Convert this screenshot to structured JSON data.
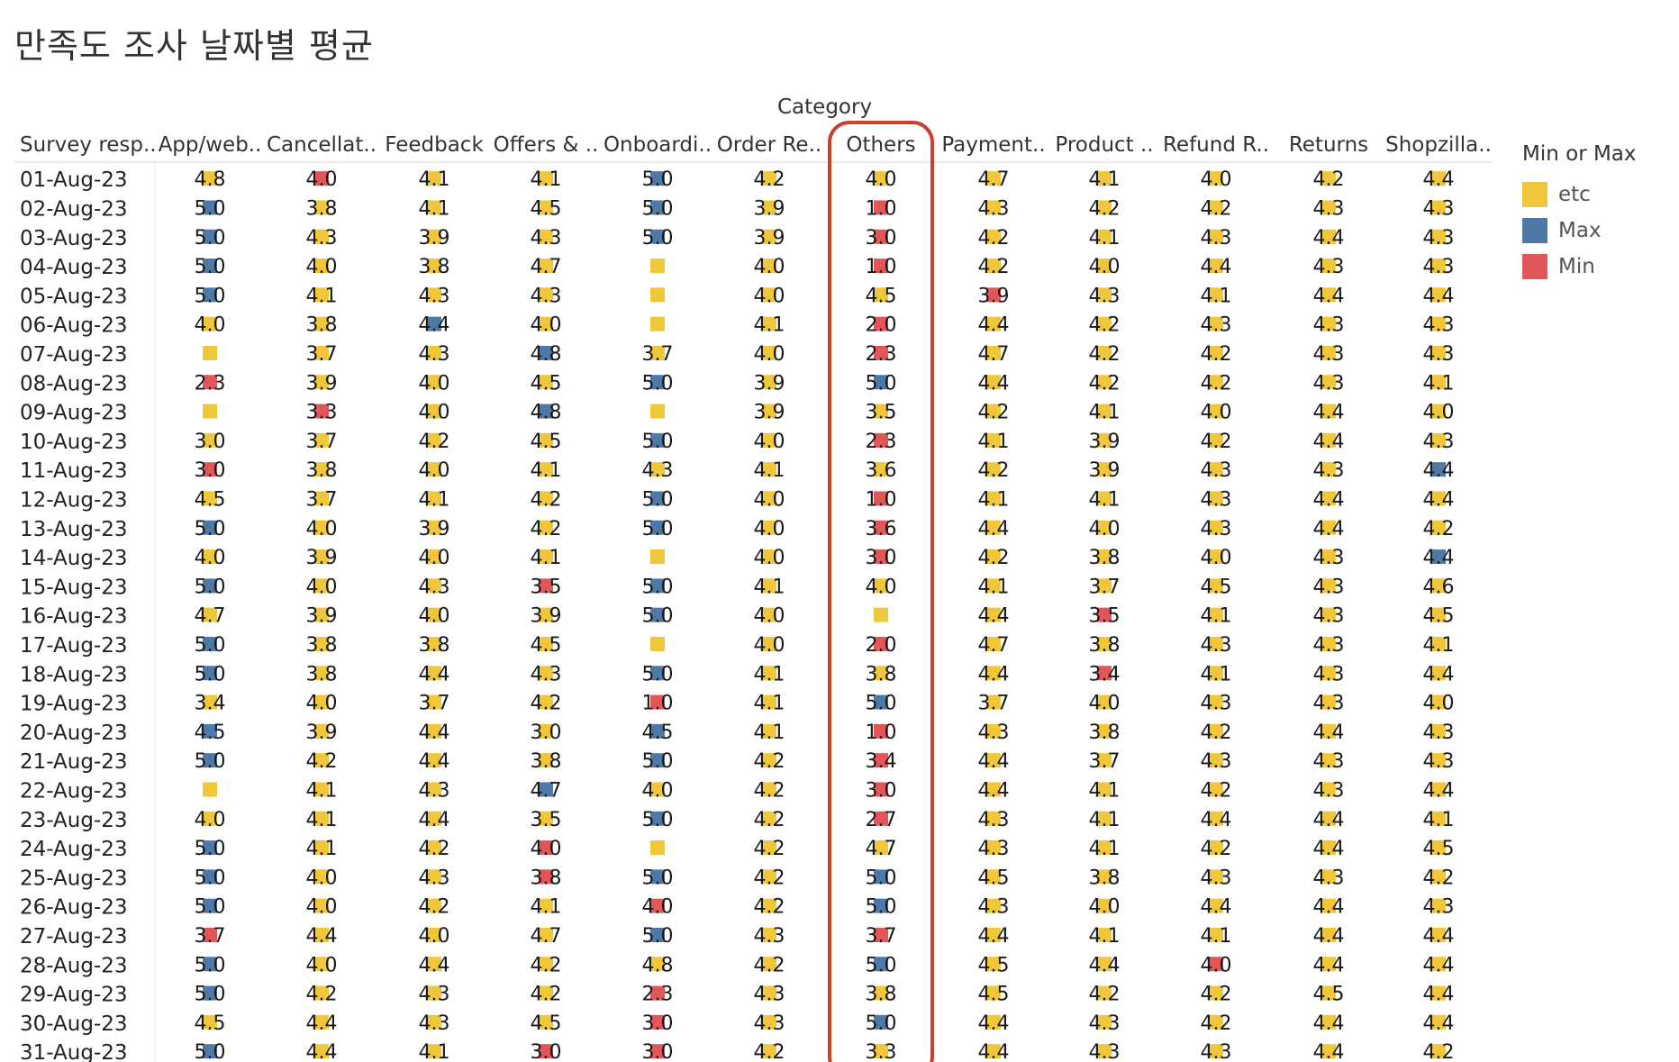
{
  "title": "만족도 조사 날짜별 평균",
  "category_label": "Category",
  "legend": {
    "title": "Min or Max",
    "items": [
      {
        "label": "etc",
        "color": "#f0c63a"
      },
      {
        "label": "Max",
        "color": "#4e79a7"
      },
      {
        "label": "Min",
        "color": "#e15759"
      }
    ]
  },
  "highlight_color": "#c8412b",
  "chart_data": {
    "type": "table",
    "row_header": "Survey resp..",
    "highlighted_column": "Others",
    "columns": [
      "App/web..",
      "Cancellat..",
      "Feedback",
      "Offers & ..",
      "Onboardi..",
      "Order Re..",
      "Others",
      "Payment..",
      "Product ..",
      "Refund R..",
      "Returns",
      "Shopzilla.."
    ],
    "rows": [
      {
        "date": "01-Aug-23",
        "values": [
          "4.8",
          "4.0",
          "4.1",
          "4.1",
          "5.0",
          "4.2",
          "4.0",
          "4.7",
          "4.1",
          "4.0",
          "4.2",
          "4.4"
        ],
        "marks": [
          "etc",
          "min",
          "etc",
          "etc",
          "max",
          "etc",
          "etc",
          "etc",
          "etc",
          "etc",
          "etc",
          "etc"
        ]
      },
      {
        "date": "02-Aug-23",
        "values": [
          "5.0",
          "3.8",
          "4.1",
          "4.5",
          "5.0",
          "3.9",
          "1.0",
          "4.3",
          "4.2",
          "4.2",
          "4.3",
          "4.3"
        ],
        "marks": [
          "max",
          "etc",
          "etc",
          "etc",
          "max",
          "etc",
          "min",
          "etc",
          "etc",
          "etc",
          "etc",
          "etc"
        ]
      },
      {
        "date": "03-Aug-23",
        "values": [
          "5.0",
          "4.3",
          "3.9",
          "4.3",
          "5.0",
          "3.9",
          "3.0",
          "4.2",
          "4.1",
          "4.3",
          "4.4",
          "4.3"
        ],
        "marks": [
          "max",
          "etc",
          "etc",
          "etc",
          "max",
          "etc",
          "min",
          "etc",
          "etc",
          "etc",
          "etc",
          "etc"
        ]
      },
      {
        "date": "04-Aug-23",
        "values": [
          "5.0",
          "4.0",
          "3.8",
          "4.7",
          "",
          "4.0",
          "1.0",
          "4.2",
          "4.0",
          "4.4",
          "4.3",
          "4.3"
        ],
        "marks": [
          "max",
          "etc",
          "etc",
          "etc",
          "etc",
          "etc",
          "min",
          "etc",
          "etc",
          "etc",
          "etc",
          "etc"
        ]
      },
      {
        "date": "05-Aug-23",
        "values": [
          "5.0",
          "4.1",
          "4.3",
          "4.3",
          "",
          "4.0",
          "4.5",
          "3.9",
          "4.3",
          "4.1",
          "4.4",
          "4.4"
        ],
        "marks": [
          "max",
          "etc",
          "etc",
          "etc",
          "etc",
          "etc",
          "etc",
          "min",
          "etc",
          "etc",
          "etc",
          "etc"
        ]
      },
      {
        "date": "06-Aug-23",
        "values": [
          "4.0",
          "3.8",
          "4.4",
          "4.0",
          "",
          "4.1",
          "2.0",
          "4.4",
          "4.2",
          "4.3",
          "4.3",
          "4.3"
        ],
        "marks": [
          "etc",
          "etc",
          "max",
          "etc",
          "etc",
          "etc",
          "min",
          "etc",
          "etc",
          "etc",
          "etc",
          "etc"
        ]
      },
      {
        "date": "07-Aug-23",
        "values": [
          "",
          "3.7",
          "4.3",
          "4.8",
          "3.7",
          "4.0",
          "2.3",
          "4.7",
          "4.2",
          "4.2",
          "4.3",
          "4.3"
        ],
        "marks": [
          "etc",
          "etc",
          "etc",
          "max",
          "etc",
          "etc",
          "min",
          "etc",
          "etc",
          "etc",
          "etc",
          "etc"
        ]
      },
      {
        "date": "08-Aug-23",
        "values": [
          "2.3",
          "3.9",
          "4.0",
          "4.5",
          "5.0",
          "3.9",
          "5.0",
          "4.4",
          "4.2",
          "4.2",
          "4.3",
          "4.1"
        ],
        "marks": [
          "min",
          "etc",
          "etc",
          "etc",
          "max",
          "etc",
          "max",
          "etc",
          "etc",
          "etc",
          "etc",
          "etc"
        ]
      },
      {
        "date": "09-Aug-23",
        "values": [
          "",
          "3.3",
          "4.0",
          "4.8",
          "",
          "3.9",
          "3.5",
          "4.2",
          "4.1",
          "4.0",
          "4.4",
          "4.0"
        ],
        "marks": [
          "etc",
          "min",
          "etc",
          "max",
          "etc",
          "etc",
          "etc",
          "etc",
          "etc",
          "etc",
          "etc",
          "etc"
        ]
      },
      {
        "date": "10-Aug-23",
        "values": [
          "3.0",
          "3.7",
          "4.2",
          "4.5",
          "5.0",
          "4.0",
          "2.3",
          "4.1",
          "3.9",
          "4.2",
          "4.4",
          "4.3"
        ],
        "marks": [
          "etc",
          "etc",
          "etc",
          "etc",
          "max",
          "etc",
          "min",
          "etc",
          "etc",
          "etc",
          "etc",
          "etc"
        ]
      },
      {
        "date": "11-Aug-23",
        "values": [
          "3.0",
          "3.8",
          "4.0",
          "4.1",
          "4.3",
          "4.1",
          "3.6",
          "4.2",
          "3.9",
          "4.3",
          "4.3",
          "4.4"
        ],
        "marks": [
          "min",
          "etc",
          "etc",
          "etc",
          "etc",
          "etc",
          "etc",
          "etc",
          "etc",
          "etc",
          "etc",
          "max"
        ]
      },
      {
        "date": "12-Aug-23",
        "values": [
          "4.5",
          "3.7",
          "4.1",
          "4.2",
          "5.0",
          "4.0",
          "1.0",
          "4.1",
          "4.1",
          "4.3",
          "4.4",
          "4.4"
        ],
        "marks": [
          "etc",
          "etc",
          "etc",
          "etc",
          "max",
          "etc",
          "min",
          "etc",
          "etc",
          "etc",
          "etc",
          "etc"
        ]
      },
      {
        "date": "13-Aug-23",
        "values": [
          "5.0",
          "4.0",
          "3.9",
          "4.2",
          "5.0",
          "4.0",
          "3.6",
          "4.4",
          "4.0",
          "4.3",
          "4.4",
          "4.2"
        ],
        "marks": [
          "max",
          "etc",
          "etc",
          "etc",
          "max",
          "etc",
          "min",
          "etc",
          "etc",
          "etc",
          "etc",
          "etc"
        ]
      },
      {
        "date": "14-Aug-23",
        "values": [
          "4.0",
          "3.9",
          "4.0",
          "4.1",
          "",
          "4.0",
          "3.0",
          "4.2",
          "3.8",
          "4.0",
          "4.3",
          "4.4"
        ],
        "marks": [
          "etc",
          "etc",
          "etc",
          "etc",
          "etc",
          "etc",
          "min",
          "etc",
          "etc",
          "etc",
          "etc",
          "max"
        ]
      },
      {
        "date": "15-Aug-23",
        "values": [
          "5.0",
          "4.0",
          "4.3",
          "3.5",
          "5.0",
          "4.1",
          "4.0",
          "4.1",
          "3.7",
          "4.5",
          "4.3",
          "4.6"
        ],
        "marks": [
          "max",
          "etc",
          "etc",
          "min",
          "max",
          "etc",
          "etc",
          "etc",
          "etc",
          "etc",
          "etc",
          "etc"
        ]
      },
      {
        "date": "16-Aug-23",
        "values": [
          "4.7",
          "3.9",
          "4.0",
          "3.9",
          "5.0",
          "4.0",
          "",
          "4.4",
          "3.5",
          "4.1",
          "4.3",
          "4.5"
        ],
        "marks": [
          "etc",
          "etc",
          "etc",
          "etc",
          "max",
          "etc",
          "etc",
          "etc",
          "min",
          "etc",
          "etc",
          "etc"
        ]
      },
      {
        "date": "17-Aug-23",
        "values": [
          "5.0",
          "3.8",
          "3.8",
          "4.5",
          "",
          "4.0",
          "2.0",
          "4.7",
          "3.8",
          "4.3",
          "4.3",
          "4.1"
        ],
        "marks": [
          "max",
          "etc",
          "etc",
          "etc",
          "etc",
          "etc",
          "min",
          "etc",
          "etc",
          "etc",
          "etc",
          "etc"
        ]
      },
      {
        "date": "18-Aug-23",
        "values": [
          "5.0",
          "3.8",
          "4.4",
          "4.3",
          "5.0",
          "4.1",
          "3.8",
          "4.4",
          "3.4",
          "4.1",
          "4.3",
          "4.4"
        ],
        "marks": [
          "max",
          "etc",
          "etc",
          "etc",
          "max",
          "etc",
          "etc",
          "etc",
          "min",
          "etc",
          "etc",
          "etc"
        ]
      },
      {
        "date": "19-Aug-23",
        "values": [
          "3.4",
          "4.0",
          "3.7",
          "4.2",
          "1.0",
          "4.1",
          "5.0",
          "3.7",
          "4.0",
          "4.3",
          "4.3",
          "4.0"
        ],
        "marks": [
          "etc",
          "etc",
          "etc",
          "etc",
          "min",
          "etc",
          "max",
          "etc",
          "etc",
          "etc",
          "etc",
          "etc"
        ]
      },
      {
        "date": "20-Aug-23",
        "values": [
          "4.5",
          "3.9",
          "4.4",
          "3.0",
          "4.5",
          "4.1",
          "1.0",
          "4.3",
          "3.8",
          "4.2",
          "4.4",
          "4.3"
        ],
        "marks": [
          "max",
          "etc",
          "etc",
          "etc",
          "max",
          "etc",
          "min",
          "etc",
          "etc",
          "etc",
          "etc",
          "etc"
        ]
      },
      {
        "date": "21-Aug-23",
        "values": [
          "5.0",
          "4.2",
          "4.4",
          "3.8",
          "5.0",
          "4.2",
          "3.4",
          "4.4",
          "3.7",
          "4.3",
          "4.3",
          "4.3"
        ],
        "marks": [
          "max",
          "etc",
          "etc",
          "etc",
          "max",
          "etc",
          "min",
          "etc",
          "etc",
          "etc",
          "etc",
          "etc"
        ]
      },
      {
        "date": "22-Aug-23",
        "values": [
          "",
          "4.1",
          "4.3",
          "4.7",
          "4.0",
          "4.2",
          "3.0",
          "4.4",
          "4.1",
          "4.2",
          "4.3",
          "4.4"
        ],
        "marks": [
          "etc",
          "etc",
          "etc",
          "max",
          "etc",
          "etc",
          "min",
          "etc",
          "etc",
          "etc",
          "etc",
          "etc"
        ]
      },
      {
        "date": "23-Aug-23",
        "values": [
          "4.0",
          "4.1",
          "4.4",
          "3.5",
          "5.0",
          "4.2",
          "2.7",
          "4.3",
          "4.1",
          "4.4",
          "4.4",
          "4.1"
        ],
        "marks": [
          "etc",
          "etc",
          "etc",
          "etc",
          "max",
          "etc",
          "min",
          "etc",
          "etc",
          "etc",
          "etc",
          "etc"
        ]
      },
      {
        "date": "24-Aug-23",
        "values": [
          "5.0",
          "4.1",
          "4.2",
          "4.0",
          "",
          "4.2",
          "4.7",
          "4.3",
          "4.1",
          "4.2",
          "4.4",
          "4.5"
        ],
        "marks": [
          "max",
          "etc",
          "etc",
          "min",
          "etc",
          "etc",
          "etc",
          "etc",
          "etc",
          "etc",
          "etc",
          "etc"
        ]
      },
      {
        "date": "25-Aug-23",
        "values": [
          "5.0",
          "4.0",
          "4.3",
          "3.8",
          "5.0",
          "4.2",
          "5.0",
          "4.5",
          "3.8",
          "4.3",
          "4.3",
          "4.2"
        ],
        "marks": [
          "max",
          "etc",
          "etc",
          "min",
          "max",
          "etc",
          "max",
          "etc",
          "etc",
          "etc",
          "etc",
          "etc"
        ]
      },
      {
        "date": "26-Aug-23",
        "values": [
          "5.0",
          "4.0",
          "4.2",
          "4.1",
          "4.0",
          "4.2",
          "5.0",
          "4.3",
          "4.0",
          "4.4",
          "4.4",
          "4.3"
        ],
        "marks": [
          "max",
          "etc",
          "etc",
          "etc",
          "min",
          "etc",
          "max",
          "etc",
          "etc",
          "etc",
          "etc",
          "etc"
        ]
      },
      {
        "date": "27-Aug-23",
        "values": [
          "3.7",
          "4.4",
          "4.0",
          "4.7",
          "5.0",
          "4.3",
          "3.7",
          "4.4",
          "4.1",
          "4.1",
          "4.4",
          "4.4"
        ],
        "marks": [
          "min",
          "etc",
          "etc",
          "etc",
          "max",
          "etc",
          "min",
          "etc",
          "etc",
          "etc",
          "etc",
          "etc"
        ]
      },
      {
        "date": "28-Aug-23",
        "values": [
          "5.0",
          "4.0",
          "4.4",
          "4.2",
          "4.8",
          "4.2",
          "5.0",
          "4.5",
          "4.4",
          "4.0",
          "4.4",
          "4.4"
        ],
        "marks": [
          "max",
          "etc",
          "etc",
          "etc",
          "etc",
          "etc",
          "max",
          "etc",
          "etc",
          "min",
          "etc",
          "etc"
        ]
      },
      {
        "date": "29-Aug-23",
        "values": [
          "5.0",
          "4.2",
          "4.3",
          "4.2",
          "2.3",
          "4.3",
          "3.8",
          "4.5",
          "4.2",
          "4.2",
          "4.5",
          "4.4"
        ],
        "marks": [
          "max",
          "etc",
          "etc",
          "etc",
          "min",
          "etc",
          "etc",
          "etc",
          "etc",
          "etc",
          "etc",
          "etc"
        ]
      },
      {
        "date": "30-Aug-23",
        "values": [
          "4.5",
          "4.4",
          "4.3",
          "4.5",
          "3.0",
          "4.3",
          "5.0",
          "4.4",
          "4.3",
          "4.2",
          "4.4",
          "4.4"
        ],
        "marks": [
          "etc",
          "etc",
          "etc",
          "etc",
          "min",
          "etc",
          "max",
          "etc",
          "etc",
          "etc",
          "etc",
          "etc"
        ]
      },
      {
        "date": "31-Aug-23",
        "values": [
          "5.0",
          "4.4",
          "4.1",
          "3.0",
          "3.0",
          "4.2",
          "3.3",
          "4.4",
          "4.3",
          "4.3",
          "4.4",
          "4.2"
        ],
        "marks": [
          "max",
          "etc",
          "etc",
          "min",
          "min",
          "etc",
          "etc",
          "etc",
          "etc",
          "etc",
          "etc",
          "etc"
        ]
      }
    ]
  }
}
